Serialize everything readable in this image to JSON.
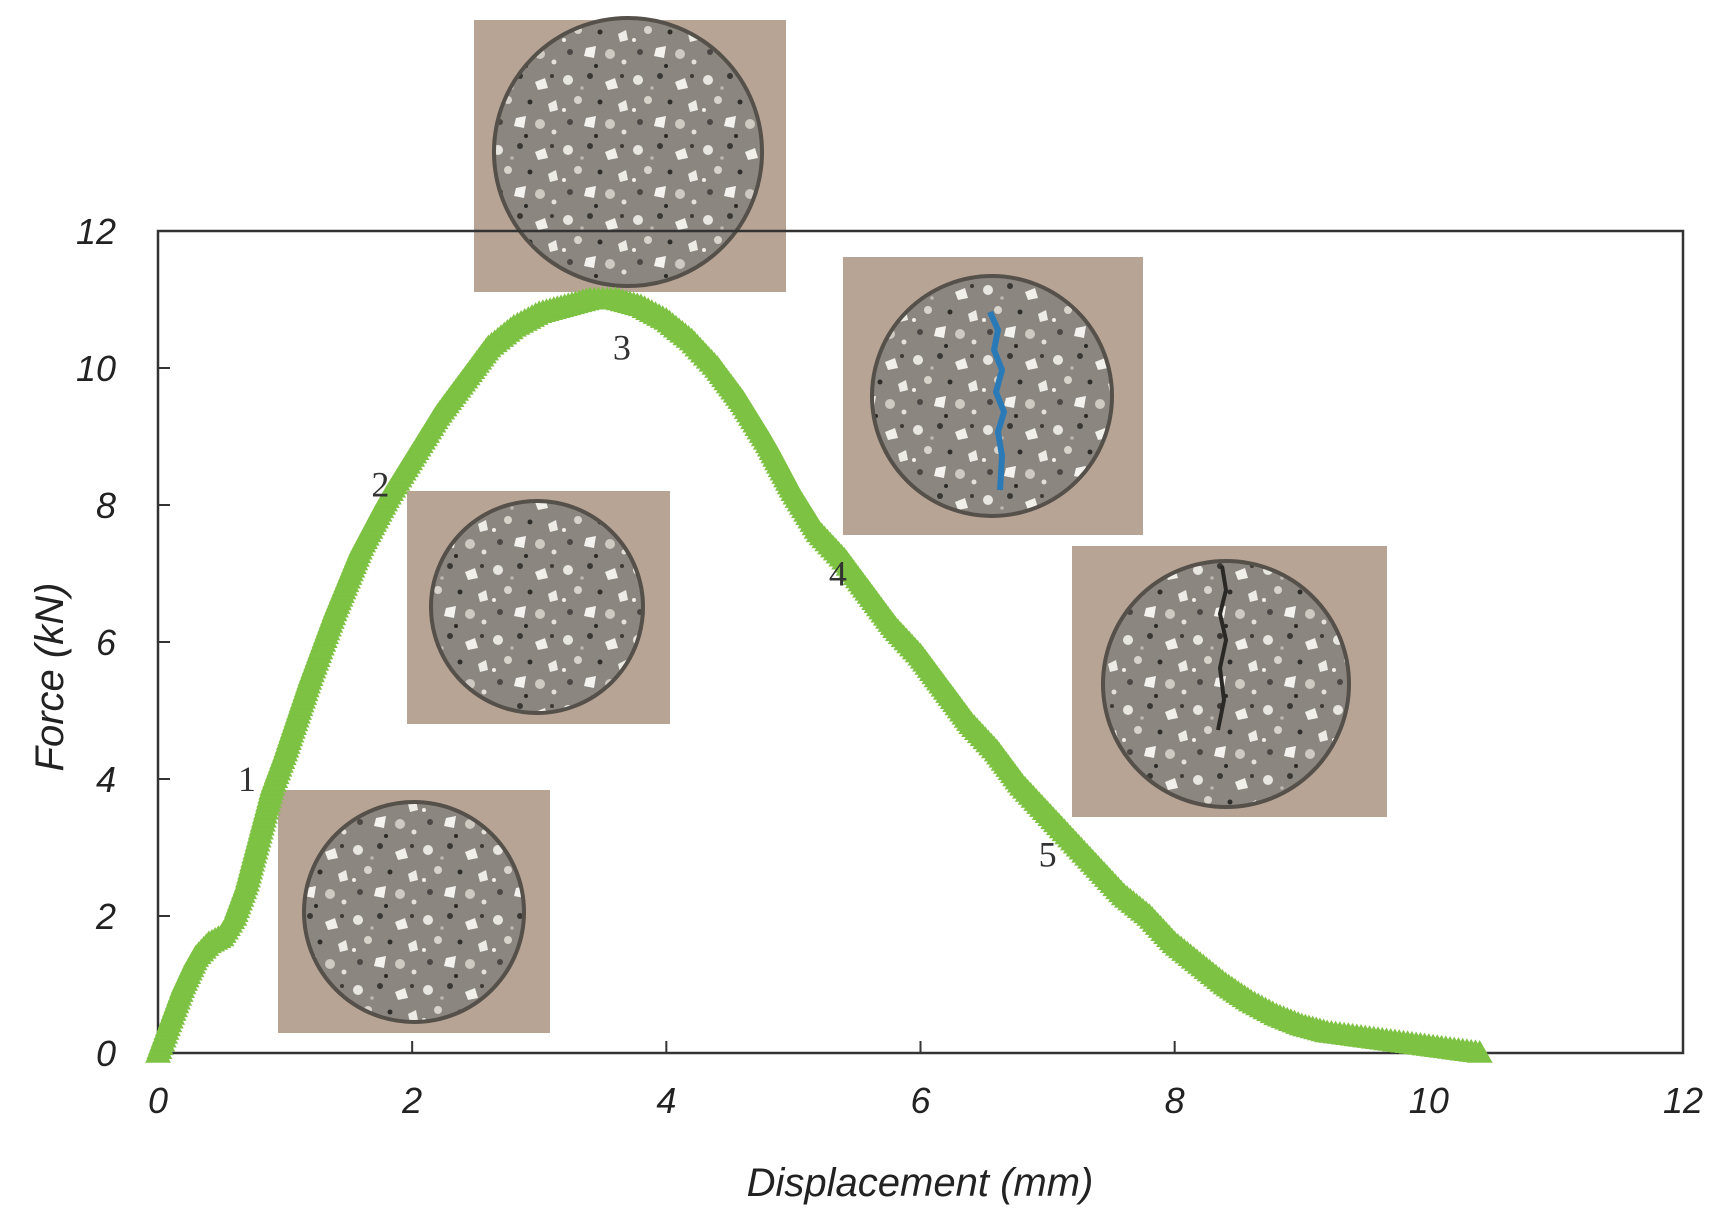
{
  "chart_data": {
    "type": "scatter",
    "xlabel": "Displacement (mm)",
    "ylabel": "Force (kN)",
    "xlim": [
      0,
      12
    ],
    "ylim": [
      0,
      12
    ],
    "x_ticks": [
      "0",
      "2",
      "4",
      "6",
      "8",
      "10",
      "12"
    ],
    "y_ticks": [
      "0",
      "2",
      "4",
      "6",
      "8",
      "10",
      "12"
    ],
    "grid": false,
    "marker": "triangle",
    "series_color": "#7dc242",
    "series": [
      {
        "x": [
          0.0,
          0.1,
          0.2,
          0.3,
          0.4,
          0.5,
          0.6,
          0.7,
          0.8,
          0.9,
          1.0,
          1.2,
          1.4,
          1.6,
          1.8,
          2.0,
          2.2,
          2.4,
          2.6,
          2.8,
          3.0,
          3.2,
          3.4,
          3.6,
          3.8,
          4.0,
          4.2,
          4.4,
          4.6,
          4.8,
          5.0,
          5.2,
          5.4,
          5.6,
          5.8,
          6.0,
          6.2,
          6.4,
          6.6,
          6.8,
          7.0,
          7.2,
          7.4,
          7.6,
          7.8,
          8.0,
          8.2,
          8.4,
          8.6,
          8.8,
          9.0,
          9.2,
          9.4,
          9.6,
          9.8,
          10.0,
          10.2,
          10.4
        ],
        "y": [
          0.0,
          0.5,
          1.0,
          1.4,
          1.6,
          1.7,
          2.0,
          2.5,
          3.2,
          3.9,
          4.4,
          5.5,
          6.5,
          7.4,
          8.1,
          8.7,
          9.3,
          9.8,
          10.3,
          10.6,
          10.8,
          10.9,
          11.0,
          11.0,
          10.9,
          10.7,
          10.4,
          10.0,
          9.5,
          8.9,
          8.2,
          7.6,
          7.2,
          6.7,
          6.2,
          5.8,
          5.3,
          4.8,
          4.4,
          3.9,
          3.5,
          3.1,
          2.7,
          2.3,
          2.0,
          1.6,
          1.3,
          1.0,
          0.75,
          0.55,
          0.4,
          0.3,
          0.25,
          0.2,
          0.15,
          0.1,
          0.05,
          0.0
        ]
      }
    ],
    "annotations": [
      {
        "label": "1",
        "x": 0.7,
        "y": 4.0
      },
      {
        "label": "2",
        "x": 1.75,
        "y": 8.3
      },
      {
        "label": "3",
        "x": 3.65,
        "y": 10.3
      },
      {
        "label": "4",
        "x": 5.35,
        "y": 7.0
      },
      {
        "label": "5",
        "x": 7.0,
        "y": 2.9
      }
    ],
    "images": [
      {
        "name": "specimen-1-image",
        "crack": "none"
      },
      {
        "name": "specimen-2-image",
        "crack": "none"
      },
      {
        "name": "specimen-3-image",
        "crack": "none"
      },
      {
        "name": "specimen-4-image",
        "crack": "blue"
      },
      {
        "name": "specimen-5-image",
        "crack": "dark"
      }
    ]
  }
}
